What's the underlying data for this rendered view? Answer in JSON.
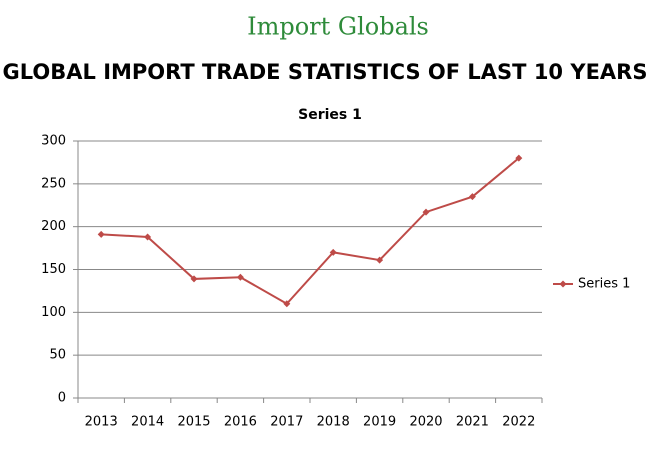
{
  "header": {
    "logo": "Import Globals",
    "title": "GLOBAL IMPORT TRADE STATISTICS OF LAST 10 YEARS"
  },
  "chart_data": {
    "type": "line",
    "title": "Series 1",
    "categories": [
      "2013",
      "2014",
      "2015",
      "2016",
      "2017",
      "2018",
      "2019",
      "2020",
      "2021",
      "2022"
    ],
    "series": [
      {
        "name": "Series 1",
        "color": "#be4b48",
        "values": [
          191,
          188,
          139,
          141,
          110,
          170,
          161,
          217,
          235,
          280
        ]
      }
    ],
    "ylim": [
      0,
      300
    ],
    "yticks": [
      0,
      50,
      100,
      150,
      200,
      250,
      300
    ],
    "grid": true,
    "legend": "right"
  }
}
